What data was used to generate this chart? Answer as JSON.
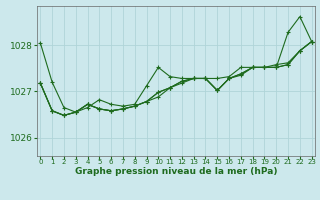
{
  "title": "Graphe pression niveau de la mer (hPa)",
  "bg_color": "#cce8ec",
  "grid_color": "#b0d4d8",
  "line_color": "#1e6b1e",
  "marker_color": "#1e6b1e",
  "xlim": [
    -0.3,
    23.3
  ],
  "ylim": [
    1025.6,
    1028.85
  ],
  "yticks": [
    1026,
    1027,
    1028
  ],
  "xtick_labels": [
    "0",
    "1",
    "2",
    "3",
    "4",
    "5",
    "6",
    "7",
    "8",
    "9",
    "10",
    "11",
    "12",
    "13",
    "14",
    "15",
    "16",
    "17",
    "18",
    "19",
    "20",
    "21",
    "22",
    "23"
  ],
  "series": [
    [
      1028.05,
      1027.2,
      1026.65,
      1026.55,
      1026.65,
      1026.82,
      1026.72,
      1026.68,
      1026.72,
      1027.12,
      1027.52,
      1027.32,
      1027.28,
      1027.28,
      1027.28,
      1027.02,
      1027.28,
      1027.35,
      1027.52,
      1027.52,
      1027.52,
      1028.28,
      1028.62,
      1028.08
    ],
    [
      1027.18,
      1026.58,
      1026.48,
      1026.55,
      1026.72,
      1026.62,
      1026.58,
      1026.62,
      1026.68,
      1026.78,
      1026.88,
      1027.08,
      1027.22,
      1027.28,
      1027.28,
      1027.28,
      1027.32,
      1027.52,
      1027.52,
      1027.52,
      1027.52,
      1027.58,
      1027.88,
      1028.08
    ],
    [
      1027.18,
      1026.58,
      1026.48,
      1026.55,
      1026.72,
      1026.62,
      1026.58,
      1026.62,
      1026.68,
      1026.78,
      1026.98,
      1027.08,
      1027.22,
      1027.28,
      1027.28,
      1027.02,
      1027.28,
      1027.38,
      1027.52,
      1027.52,
      1027.52,
      1027.58,
      1027.88,
      1028.08
    ],
    [
      1027.18,
      1026.58,
      1026.48,
      1026.55,
      1026.72,
      1026.62,
      1026.58,
      1026.62,
      1026.68,
      1026.78,
      1026.98,
      1027.08,
      1027.18,
      1027.28,
      1027.28,
      1027.02,
      1027.28,
      1027.38,
      1027.52,
      1027.52,
      1027.58,
      1027.62,
      1027.88,
      1028.08
    ]
  ]
}
